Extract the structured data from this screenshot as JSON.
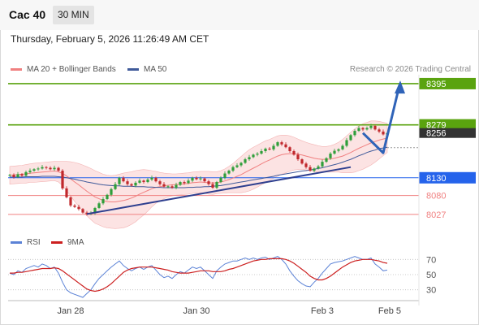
{
  "header": {
    "symbol": "Cac 40",
    "interval": "30 MIN",
    "datetime": "Thursday, February 5, 2026 11:26:49 AM CET",
    "copyright": "Research © 2026 Trading Central"
  },
  "legend": {
    "ma20": "MA 20 + Bollinger Bands",
    "ma50": "MA 50",
    "rsi": "RSI",
    "ma9": "9MA"
  },
  "colors": {
    "up": "#2e9e3a",
    "down": "#c0282c",
    "resistance": "#5aa30f",
    "support": "#f08080",
    "pivot": "#2563eb",
    "trendline": "#2e3f8f",
    "arrow": "#2f63b8",
    "price_tag": "#333333",
    "ma20": "#f08080",
    "ma50": "#3f5a9a",
    "bollinger_fill": "#fbd9d9",
    "rsi": "#5b82d6",
    "rsi_ma": "#cc1f1f"
  },
  "chart_data": [
    {
      "type": "candlestick",
      "title": "",
      "y_range": [
        7990,
        8420
      ],
      "x_ticks": [
        "Jan 28",
        "Jan 30",
        "Feb 3",
        "Feb 5"
      ],
      "last_price": 8256,
      "levels": [
        {
          "value": 8395,
          "label": "8395",
          "kind": "resistance"
        },
        {
          "value": 8279,
          "label": "8279",
          "kind": "resistance"
        },
        {
          "value": 8130,
          "label": "8130",
          "kind": "pivot"
        },
        {
          "value": 8080,
          "label": "8080",
          "kind": "support"
        },
        {
          "value": 8027,
          "label": "8027",
          "kind": "support"
        }
      ],
      "closes": [
        8138,
        8132,
        8140,
        8136,
        8146,
        8150,
        8154,
        8156,
        8160,
        8158,
        8154,
        8158,
        8150,
        8100,
        8075,
        8052,
        8048,
        8042,
        8032,
        8028,
        8030,
        8045,
        8058,
        8070,
        8082,
        8098,
        8112,
        8130,
        8120,
        8112,
        8108,
        8116,
        8122,
        8118,
        8125,
        8130,
        8120,
        8112,
        8105,
        8106,
        8102,
        8110,
        8118,
        8115,
        8122,
        8130,
        8126,
        8128,
        8120,
        8112,
        8102,
        8118,
        8130,
        8142,
        8150,
        8160,
        8165,
        8172,
        8182,
        8188,
        8195,
        8198,
        8205,
        8212,
        8210,
        8220,
        8230,
        8224,
        8216,
        8205,
        8195,
        8182,
        8170,
        8160,
        8150,
        8156,
        8162,
        8175,
        8185,
        8198,
        8206,
        8210,
        8220,
        8236,
        8250,
        8262,
        8270,
        8266,
        8270,
        8276,
        8266,
        8260,
        8252,
        8256
      ],
      "ma20": [
        8137,
        8138,
        8139,
        8140,
        8141,
        8143,
        8144,
        8145,
        8146,
        8147,
        8148,
        8149,
        8147,
        8142,
        8135,
        8127,
        8118,
        8110,
        8101,
        8092,
        8084,
        8076,
        8071,
        8066,
        8063,
        8062,
        8062,
        8064,
        8066,
        8069,
        8073,
        8078,
        8084,
        8089,
        8094,
        8099,
        8103,
        8105,
        8107,
        8109,
        8110,
        8111,
        8112,
        8113,
        8114,
        8116,
        8117,
        8118,
        8117,
        8116,
        8115,
        8116,
        8118,
        8121,
        8125,
        8129,
        8134,
        8139,
        8145,
        8151,
        8157,
        8163,
        8169,
        8175,
        8180,
        8186,
        8191,
        8195,
        8197,
        8198,
        8198,
        8196,
        8194,
        8191,
        8188,
        8185,
        8183,
        8182,
        8182,
        8183,
        8185,
        8188,
        8191,
        8196,
        8201,
        8207,
        8213,
        8218,
        8223,
        8228,
        8232,
        8236,
        8239,
        8242
      ],
      "ma50": [
        8132,
        8132,
        8132,
        8132,
        8133,
        8133,
        8133,
        8133,
        8134,
        8134,
        8134,
        8134,
        8133,
        8132,
        8130,
        8128,
        8126,
        8123,
        8121,
        8118,
        8116,
        8114,
        8112,
        8110,
        8109,
        8108,
        8107,
        8107,
        8106,
        8106,
        8106,
        8105,
        8105,
        8105,
        8104,
        8104,
        8103,
        8103,
        8102,
        8102,
        8102,
        8102,
        8102,
        8102,
        8103,
        8103,
        8104,
        8104,
        8105,
        8105,
        8106,
        8107,
        8108,
        8110,
        8112,
        8114,
        8116,
        8118,
        8120,
        8122,
        8124,
        8126,
        8128,
        8130,
        8132,
        8134,
        8137,
        8139,
        8141,
        8143,
        8145,
        8147,
        8149,
        8150,
        8152,
        8154,
        8156,
        8158,
        8161,
        8164,
        8167,
        8170,
        8174,
        8178,
        8182,
        8187,
        8192,
        8196,
        8201,
        8205,
        8208,
        8212,
        8214,
        8216
      ],
      "bollinger_upper": [
        8162,
        8163,
        8164,
        8165,
        8167,
        8169,
        8171,
        8172,
        8173,
        8174,
        8175,
        8176,
        8176,
        8176,
        8176,
        8175,
        8173,
        8170,
        8166,
        8161,
        8156,
        8150,
        8145,
        8140,
        8137,
        8136,
        8137,
        8140,
        8143,
        8145,
        8147,
        8150,
        8152,
        8153,
        8152,
        8150,
        8148,
        8145,
        8143,
        8142,
        8141,
        8141,
        8142,
        8143,
        8144,
        8146,
        8147,
        8148,
        8148,
        8148,
        8147,
        8147,
        8150,
        8155,
        8162,
        8170,
        8180,
        8190,
        8200,
        8209,
        8216,
        8222,
        8228,
        8234,
        8238,
        8243,
        8248,
        8250,
        8250,
        8248,
        8244,
        8239,
        8234,
        8230,
        8226,
        8223,
        8220,
        8218,
        8218,
        8220,
        8224,
        8230,
        8238,
        8248,
        8258,
        8268,
        8276,
        8282,
        8286,
        8290,
        8290,
        8289,
        8286,
        8283
      ],
      "bollinger_lower": [
        8112,
        8113,
        8114,
        8115,
        8115,
        8117,
        8117,
        8118,
        8119,
        8120,
        8121,
        8122,
        8118,
        8108,
        8094,
        8079,
        8063,
        8050,
        8036,
        8023,
        8012,
        8002,
        7997,
        7992,
        7989,
        7988,
        7987,
        7988,
        7989,
        7993,
        7999,
        8006,
        8016,
        8025,
        8036,
        8048,
        8058,
        8065,
        8071,
        8076,
        8079,
        8081,
        8082,
        8083,
        8084,
        8086,
        8087,
        8088,
        8086,
        8084,
        8083,
        8085,
        8086,
        8087,
        8088,
        8088,
        8088,
        8088,
        8090,
        8093,
        8098,
        8104,
        8110,
        8116,
        8122,
        8129,
        8134,
        8140,
        8144,
        8148,
        8152,
        8153,
        8154,
        8152,
        8150,
        8147,
        8146,
        8146,
        8146,
        8146,
        8146,
        8146,
        8144,
        8144,
        8144,
        8146,
        8150,
        8154,
        8160,
        8166,
        8174,
        8183,
        8192,
        8201
      ],
      "trendlines": [
        {
          "from": {
            "bar": 19,
            "value": 8028
          },
          "to": {
            "bar": 84,
            "value": 8160
          }
        },
        {
          "from": {
            "bar": 0,
            "value": 8130
          },
          "to": {
            "bar": 94,
            "value": 8130
          }
        }
      ],
      "arrow_path": [
        {
          "bar": 87,
          "value": 8256
        },
        {
          "bar": 90,
          "value": 8200
        },
        {
          "bar": 94,
          "value": 8390
        }
      ]
    },
    {
      "type": "line",
      "title": "",
      "y_range": [
        20,
        80
      ],
      "y_ticks": [
        70,
        50,
        30
      ],
      "rsi": [
        52,
        50,
        55,
        53,
        58,
        60,
        62,
        60,
        64,
        62,
        58,
        60,
        52,
        40,
        30,
        26,
        24,
        22,
        20,
        25,
        30,
        38,
        45,
        50,
        55,
        60,
        64,
        68,
        62,
        58,
        55,
        58,
        60,
        57,
        60,
        62,
        56,
        50,
        46,
        48,
        45,
        50,
        54,
        52,
        56,
        60,
        58,
        60,
        55,
        50,
        45,
        55,
        60,
        64,
        66,
        68,
        68,
        70,
        72,
        70,
        72,
        70,
        72,
        73,
        70,
        72,
        74,
        70,
        64,
        55,
        48,
        42,
        38,
        35,
        34,
        40,
        45,
        52,
        58,
        64,
        66,
        67,
        68,
        70,
        72,
        74,
        72,
        70,
        70,
        72,
        64,
        60,
        55,
        56
      ],
      "ma9": [
        52,
        52,
        53,
        53,
        54,
        55,
        56,
        57,
        58,
        58,
        58,
        59,
        58,
        55,
        51,
        47,
        43,
        39,
        35,
        31,
        29,
        28,
        29,
        31,
        34,
        38,
        43,
        48,
        53,
        56,
        58,
        59,
        60,
        60,
        60,
        60,
        59,
        58,
        57,
        56,
        54,
        53,
        52,
        52,
        52,
        53,
        54,
        55,
        55,
        55,
        54,
        54,
        54,
        55,
        57,
        58,
        60,
        62,
        64,
        66,
        68,
        69,
        70,
        70,
        71,
        71,
        71,
        71,
        70,
        68,
        65,
        61,
        57,
        53,
        48,
        45,
        43,
        43,
        45,
        48,
        52,
        56,
        60,
        63,
        66,
        68,
        69,
        70,
        70,
        70,
        69,
        68,
        66,
        65
      ]
    }
  ]
}
